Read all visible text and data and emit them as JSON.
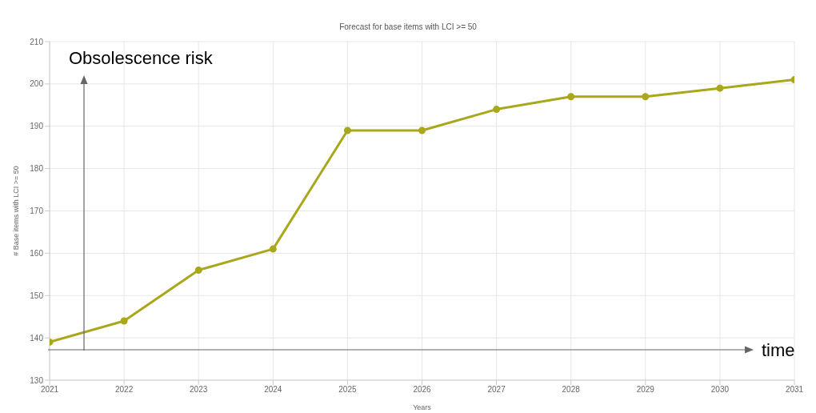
{
  "chart_data": {
    "type": "line",
    "title": "Forecast for base items with LCI >= 50",
    "xlabel": "Years",
    "ylabel": "# Base items with LCI >= 50",
    "x": [
      2021,
      2022,
      2023,
      2024,
      2025,
      2026,
      2027,
      2028,
      2029,
      2030,
      2031
    ],
    "series": [
      {
        "color": "#a9a81c",
        "values": [
          139,
          144,
          156,
          161,
          189,
          189,
          194,
          197,
          197,
          199,
          201
        ]
      }
    ],
    "xlim": [
      2021,
      2031
    ],
    "xticks": [
      2021,
      2022,
      2023,
      2024,
      2025,
      2026,
      2027,
      2028,
      2029,
      2030,
      2031
    ],
    "ylim": [
      130,
      210
    ],
    "yticks": [
      130,
      140,
      150,
      160,
      170,
      180,
      190,
      200,
      210
    ],
    "grid": true,
    "marker": "circle",
    "line_style": "solid",
    "legend": false,
    "annotations": [
      "Obsolescence risk",
      "time"
    ]
  }
}
